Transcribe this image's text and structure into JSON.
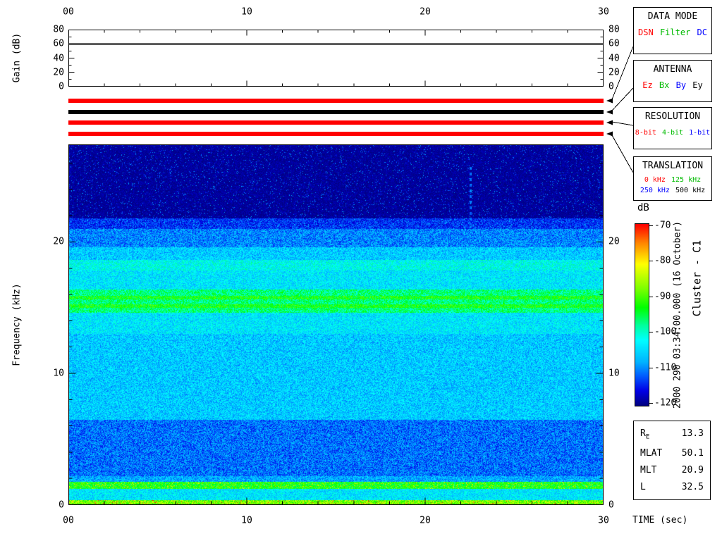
{
  "gain_panel": {
    "ylabel": "Gain (dB)",
    "yticks": [
      "0",
      "20",
      "40",
      "60",
      "80"
    ],
    "xticks": [
      "00",
      "10",
      "20",
      "30"
    ]
  },
  "spectrogram_axes": {
    "ylabel": "Frequency (kHz)",
    "yticks": [
      "0",
      "10",
      "20"
    ],
    "xticks": [
      "00",
      "10",
      "20",
      "30"
    ],
    "xlabel": "TIME (sec)"
  },
  "status_bars": [
    {
      "name": "data-mode-bar",
      "color": "#ff0000"
    },
    {
      "name": "antenna-bar",
      "color": "#000000"
    },
    {
      "name": "resolution-bar",
      "color": "#ff0000"
    },
    {
      "name": "translation-bar",
      "color": "#ff0000"
    }
  ],
  "legend_boxes": [
    {
      "title": "DATA MODE",
      "options": [
        {
          "label": "DSN",
          "color": "#ff0000"
        },
        {
          "label": "Filter",
          "color": "#00bb00"
        },
        {
          "label": "DC",
          "color": "#0000ff"
        }
      ]
    },
    {
      "title": "ANTENNA",
      "options": [
        {
          "label": "Ez",
          "color": "#ff0000"
        },
        {
          "label": "Bx",
          "color": "#00bb00"
        },
        {
          "label": "By",
          "color": "#0000ff"
        },
        {
          "label": "Ey",
          "color": "#000000"
        }
      ]
    },
    {
      "title": "RESOLUTION",
      "options": [
        {
          "label": "8-bit",
          "color": "#ff0000"
        },
        {
          "label": "4-bit",
          "color": "#00bb00"
        },
        {
          "label": "1-bit",
          "color": "#0000ff"
        }
      ]
    },
    {
      "title": "TRANSLATION",
      "options": [
        {
          "label": "0 kHz",
          "color": "#ff0000"
        },
        {
          "label": "125 kHz",
          "color": "#00bb00"
        },
        {
          "label": "250 kHz",
          "color": "#0000ff"
        },
        {
          "label": "500 kHz",
          "color": "#000000"
        }
      ]
    }
  ],
  "colorbar": {
    "title": "dB",
    "tick_labels": [
      "-70",
      "-80",
      "-90",
      "-100",
      "-110",
      "-120"
    ],
    "min": -120,
    "max": -70,
    "stops": [
      {
        "db": -120,
        "color": "#000082"
      },
      {
        "db": -116,
        "color": "#0000e6"
      },
      {
        "db": -112,
        "color": "#005aff"
      },
      {
        "db": -108,
        "color": "#00b4ff"
      },
      {
        "db": -102,
        "color": "#00ffff"
      },
      {
        "db": -98,
        "color": "#00ffa0"
      },
      {
        "db": -93,
        "color": "#00ff00"
      },
      {
        "db": -88,
        "color": "#78ff00"
      },
      {
        "db": -81,
        "color": "#ffff00"
      },
      {
        "db": -75,
        "color": "#ff8200"
      },
      {
        "db": -70,
        "color": "#ff0000"
      }
    ]
  },
  "side_text": {
    "timestamp": "2000 290 03:34:00.000 (16 October)",
    "spacecraft": "Cluster - C1"
  },
  "info_box": {
    "rows": [
      {
        "label": "R",
        "sub": "E",
        "value": "13.3"
      },
      {
        "label": "MLAT",
        "value": "50.1"
      },
      {
        "label": "MLT",
        "value": "20.9"
      },
      {
        "label": "L",
        "value": "32.5"
      }
    ]
  },
  "chart_data": [
    {
      "type": "line",
      "name": "receiver-gain",
      "ylabel": "Gain (dB)",
      "xlabel": "TIME (sec)",
      "xlim": [
        0,
        30
      ],
      "ylim": [
        0,
        80
      ],
      "x": [
        0,
        30
      ],
      "values": [
        60,
        60
      ]
    },
    {
      "type": "heatmap",
      "name": "wideband-spectrogram",
      "xlabel": "TIME (sec)",
      "ylabel": "Frequency (kHz)",
      "xlim": [
        0,
        30
      ],
      "ylim": [
        0,
        27.4
      ],
      "zlim": [
        -120,
        -70
      ],
      "colorbar_label": "dB",
      "frequency_profile": [
        {
          "f_range": [
            0,
            0.4
          ],
          "db": -88,
          "noise": 6,
          "speck_p": 0.06,
          "speck_boost": 12
        },
        {
          "f_range": [
            0.4,
            1.25
          ],
          "db": -104,
          "noise": 5
        },
        {
          "f_range": [
            1.25,
            1.75
          ],
          "db": -93,
          "noise": 5,
          "speck_p": 0.12,
          "speck_boost": 9
        },
        {
          "f_range": [
            1.75,
            2.2
          ],
          "db": -108,
          "noise": 5
        },
        {
          "f_range": [
            2.2,
            6.5
          ],
          "db": -111,
          "noise": 5
        },
        {
          "f_range": [
            6.5,
            13
          ],
          "db": -106,
          "noise": 5
        },
        {
          "f_range": [
            13,
            14.6
          ],
          "db": -104,
          "noise": 5
        },
        {
          "f_range": [
            14.6,
            16.4
          ],
          "db": -97,
          "noise": 5,
          "stripes": [
            15.1,
            15.75
          ]
        },
        {
          "f_range": [
            16.4,
            17.8
          ],
          "db": -104,
          "noise": 5
        },
        {
          "f_range": [
            17.8,
            18.6
          ],
          "db": -102,
          "noise": 5
        },
        {
          "f_range": [
            18.6,
            19.6
          ],
          "db": -106,
          "noise": 5
        },
        {
          "f_range": [
            19.6,
            21.0
          ],
          "db": -110,
          "noise": 5
        },
        {
          "f_range": [
            21.0,
            21.8
          ],
          "db": -114,
          "noise": 4,
          "speck_p": 0.06,
          "speck_boost": 6
        },
        {
          "f_range": [
            21.8,
            27.4
          ],
          "db": -119,
          "noise": 1.5,
          "speck_p": 0.05,
          "speck_boost": 8
        }
      ],
      "artifact": {
        "t": 22.55,
        "f_range": [
          21.3,
          25.8
        ],
        "db": -111
      }
    }
  ]
}
